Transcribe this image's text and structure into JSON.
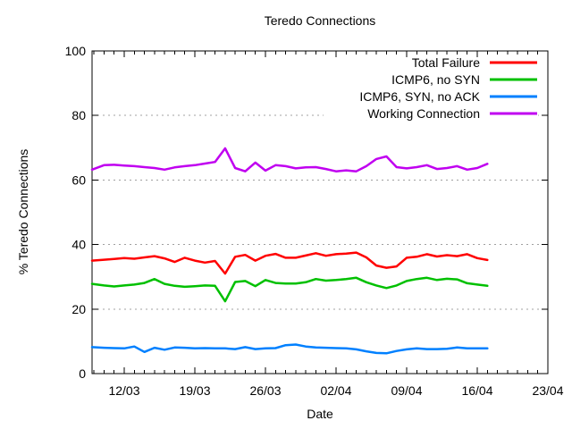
{
  "page": {
    "background": "#ffffff",
    "text_color": "#000000"
  },
  "chart_data": {
    "type": "line",
    "title": "Teredo Connections",
    "xlabel": "Date",
    "ylabel": "% Teredo Connections",
    "ylim": [
      0,
      100
    ],
    "yticks": [
      0,
      20,
      40,
      60,
      80,
      100
    ],
    "grid_values": [
      20,
      40,
      60,
      80
    ],
    "grid": "horizontal-dashed-gray",
    "grid_color": "#a0a0a0",
    "axis_color": "#000000",
    "legend_position": "top-right-inside",
    "x_tick_labels": [
      "12/03",
      "19/03",
      "26/03",
      "02/04",
      "09/04",
      "16/04",
      "23/04"
    ],
    "x_tick_interval_days": 7,
    "x_minor_tick_interval_days": 1,
    "first_sample_day_offset": -3,
    "last_sample_day_offset": 36,
    "axis_day_range": [
      -3.2,
      42
    ],
    "series": [
      {
        "name": "Total Failure",
        "color": "#ff0000",
        "values": [
          35.0,
          35.3,
          35.5,
          35.8,
          35.6,
          36.0,
          36.4,
          35.7,
          34.6,
          35.9,
          35.0,
          34.4,
          34.9,
          31.0,
          36.2,
          36.8,
          35.0,
          36.5,
          37.1,
          35.9,
          35.9,
          36.6,
          37.3,
          36.5,
          37.0,
          37.2,
          37.5,
          36.0,
          33.5,
          32.8,
          33.2,
          35.9,
          36.2,
          37.0,
          36.3,
          36.7,
          36.4,
          37.0,
          35.8,
          35.2
        ]
      },
      {
        "name": "ICMP6, no SYN",
        "color": "#00c000",
        "values": [
          27.8,
          27.3,
          27.0,
          27.3,
          27.6,
          28.1,
          29.3,
          27.8,
          27.2,
          26.9,
          27.1,
          27.3,
          27.2,
          22.4,
          28.4,
          28.7,
          27.1,
          29.0,
          28.1,
          27.9,
          27.9,
          28.3,
          29.3,
          28.8,
          29.0,
          29.3,
          29.7,
          28.3,
          27.3,
          26.5,
          27.3,
          28.7,
          29.3,
          29.7,
          29.0,
          29.4,
          29.2,
          28.0,
          27.6,
          27.2
        ]
      },
      {
        "name": "ICMP6, SYN, no ACK",
        "color": "#0080ff",
        "values": [
          8.2,
          8.0,
          7.9,
          7.8,
          8.4,
          6.7,
          8.0,
          7.4,
          8.1,
          8.0,
          7.8,
          7.9,
          7.8,
          7.8,
          7.6,
          8.2,
          7.6,
          7.8,
          7.9,
          8.8,
          9.0,
          8.4,
          8.1,
          8.0,
          7.9,
          7.8,
          7.5,
          6.9,
          6.4,
          6.3,
          7.0,
          7.5,
          7.8,
          7.6,
          7.6,
          7.7,
          8.1,
          7.8,
          7.8,
          7.8
        ]
      },
      {
        "name": "Working Connection",
        "color": "#c000f0",
        "values": [
          63.2,
          64.6,
          64.7,
          64.5,
          64.3,
          64.0,
          63.7,
          63.2,
          63.9,
          64.3,
          64.6,
          65.1,
          65.6,
          69.8,
          63.7,
          62.7,
          65.4,
          62.9,
          64.6,
          64.3,
          63.6,
          63.9,
          64.0,
          63.4,
          62.7,
          63.0,
          62.7,
          64.3,
          66.5,
          67.3,
          64.0,
          63.6,
          64.0,
          64.6,
          63.4,
          63.7,
          64.3,
          63.2,
          63.7,
          65.0
        ]
      }
    ]
  }
}
